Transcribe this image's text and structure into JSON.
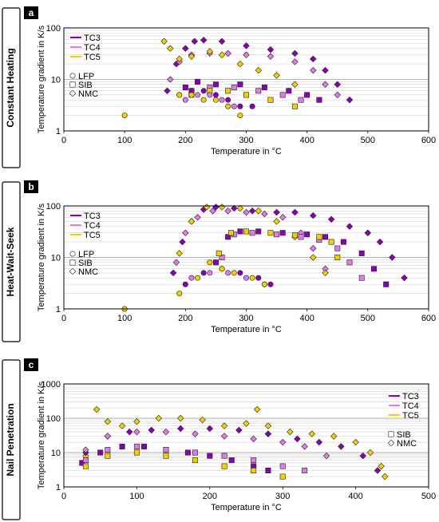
{
  "colors": {
    "TC3": "#8a00b8",
    "TC4": "#e07ae8",
    "TC5": "#f2d000",
    "axis": "#000000",
    "grid": "#c8c8c8"
  },
  "chart_data": [
    {
      "type": "scatter",
      "panel_letter": "a",
      "side_label": "Constant Heating",
      "xlabel": "Temperature in °C",
      "ylabel": "Temperature gradient in K/s",
      "y_scale": "log",
      "xlim": [
        0,
        600
      ],
      "ylim": [
        1,
        100
      ],
      "x_ticks": [
        "0",
        "100",
        "200",
        "300",
        "400",
        "500",
        "600"
      ],
      "y_ticks": [
        "1",
        "10",
        "100"
      ],
      "legend_lines": [
        "TC3",
        "TC4",
        "TC5"
      ],
      "legend_markers": [
        {
          "marker": "circle",
          "label": "LFP"
        },
        {
          "marker": "square",
          "label": "SIB"
        },
        {
          "marker": "diamond",
          "label": "NMC"
        }
      ],
      "series": [
        {
          "name": "TC3",
          "marker": "diamond",
          "points": [
            [
              170,
              6
            ],
            [
              185,
              20
            ],
            [
              200,
              40
            ],
            [
              215,
              55
            ],
            [
              230,
              58
            ],
            [
              260,
              55
            ],
            [
              300,
              45
            ],
            [
              340,
              38
            ],
            [
              380,
              32
            ],
            [
              410,
              25
            ],
            [
              430,
              15
            ],
            [
              450,
              8
            ],
            [
              470,
              4
            ]
          ]
        },
        {
          "name": "TC4",
          "marker": "diamond",
          "points": [
            [
              175,
              10
            ],
            [
              190,
              22
            ],
            [
              210,
              30
            ],
            [
              240,
              32
            ],
            [
              270,
              32
            ],
            [
              300,
              30
            ],
            [
              340,
              28
            ],
            [
              380,
              22
            ],
            [
              410,
              15
            ],
            [
              430,
              8
            ],
            [
              450,
              5
            ]
          ]
        },
        {
          "name": "TC5",
          "marker": "diamond",
          "points": [
            [
              165,
              55
            ],
            [
              175,
              40
            ],
            [
              190,
              25
            ],
            [
              210,
              28
            ],
            [
              240,
              35
            ],
            [
              260,
              30
            ],
            [
              290,
              20
            ],
            [
              320,
              15
            ],
            [
              350,
              12
            ],
            [
              380,
              8
            ]
          ]
        },
        {
          "name": "TC3",
          "marker": "square",
          "points": [
            [
              200,
              7
            ],
            [
              220,
              9
            ],
            [
              250,
              8
            ],
            [
              290,
              8
            ],
            [
              330,
              7
            ],
            [
              370,
              6
            ],
            [
              400,
              5
            ],
            [
              420,
              4
            ]
          ]
        },
        {
          "name": "TC4",
          "marker": "square",
          "points": [
            [
              210,
              6
            ],
            [
              240,
              7
            ],
            [
              280,
              7
            ],
            [
              320,
              6
            ],
            [
              360,
              5
            ],
            [
              390,
              4
            ]
          ]
        },
        {
          "name": "TC5",
          "marker": "square",
          "points": [
            [
              210,
              5
            ],
            [
              240,
              6
            ],
            [
              270,
              6
            ],
            [
              300,
              5
            ],
            [
              340,
              4
            ],
            [
              380,
              3
            ]
          ]
        },
        {
          "name": "TC3",
          "marker": "circle",
          "points": [
            [
              190,
              5
            ],
            [
              210,
              6
            ],
            [
              230,
              6
            ],
            [
              250,
              5
            ],
            [
              270,
              4
            ],
            [
              290,
              3
            ],
            [
              310,
              3
            ]
          ]
        },
        {
          "name": "TC4",
          "marker": "circle",
          "points": [
            [
              200,
              4
            ],
            [
              220,
              5
            ],
            [
              240,
              5
            ],
            [
              260,
              4
            ],
            [
              280,
              3
            ]
          ]
        },
        {
          "name": "TC5",
          "marker": "circle",
          "points": [
            [
              100,
              2
            ],
            [
              190,
              5
            ],
            [
              210,
              5
            ],
            [
              230,
              4
            ],
            [
              250,
              4
            ],
            [
              270,
              3
            ],
            [
              290,
              2
            ]
          ]
        }
      ]
    },
    {
      "type": "scatter",
      "panel_letter": "b",
      "side_label": "Heat-Wait-Seek",
      "xlabel": "Temperature in °C",
      "ylabel": "Temperature gradient in K/s",
      "y_scale": "log",
      "xlim": [
        0,
        600
      ],
      "ylim": [
        1,
        100
      ],
      "x_ticks": [
        "0",
        "100",
        "200",
        "300",
        "400",
        "500",
        "600"
      ],
      "y_ticks": [
        "1",
        "10",
        "100"
      ],
      "legend_lines": [
        "TC3",
        "TC4",
        "TC5"
      ],
      "legend_markers": [
        {
          "marker": "circle",
          "label": "LFP"
        },
        {
          "marker": "square",
          "label": "SIB"
        },
        {
          "marker": "diamond",
          "label": "NMC"
        }
      ],
      "series": [
        {
          "name": "TC3",
          "marker": "diamond",
          "points": [
            [
              180,
              5
            ],
            [
              195,
              20
            ],
            [
              210,
              50
            ],
            [
              230,
              85
            ],
            [
              250,
              95
            ],
            [
              280,
              90
            ],
            [
              310,
              80
            ],
            [
              350,
              75
            ],
            [
              380,
              75
            ],
            [
              410,
              65
            ],
            [
              440,
              55
            ],
            [
              470,
              40
            ],
            [
              500,
              30
            ],
            [
              520,
              20
            ],
            [
              540,
              10
            ],
            [
              560,
              4
            ]
          ]
        },
        {
          "name": "TC4",
          "marker": "diamond",
          "points": [
            [
              185,
              8
            ],
            [
              200,
              30
            ],
            [
              220,
              60
            ],
            [
              245,
              80
            ],
            [
              270,
              80
            ],
            [
              300,
              75
            ],
            [
              330,
              70
            ],
            [
              360,
              60
            ],
            [
              390,
              30
            ],
            [
              410,
              15
            ],
            [
              430,
              6
            ]
          ]
        },
        {
          "name": "TC5",
          "marker": "diamond",
          "points": [
            [
              190,
              12
            ],
            [
              210,
              50
            ],
            [
              235,
              95
            ],
            [
              260,
              95
            ],
            [
              290,
              90
            ],
            [
              320,
              80
            ],
            [
              350,
              50
            ],
            [
              380,
              25
            ],
            [
              410,
              10
            ],
            [
              430,
              5
            ]
          ]
        },
        {
          "name": "TC3",
          "marker": "square",
          "points": [
            [
              250,
              8
            ],
            [
              270,
              25
            ],
            [
              290,
              32
            ],
            [
              320,
              32
            ],
            [
              360,
              30
            ],
            [
              400,
              28
            ],
            [
              430,
              25
            ],
            [
              460,
              20
            ],
            [
              490,
              12
            ],
            [
              510,
              6
            ],
            [
              530,
              3
            ]
          ]
        },
        {
          "name": "TC4",
          "marker": "square",
          "points": [
            [
              260,
              10
            ],
            [
              280,
              28
            ],
            [
              310,
              30
            ],
            [
              350,
              28
            ],
            [
              390,
              25
            ],
            [
              420,
              22
            ],
            [
              450,
              15
            ],
            [
              470,
              8
            ],
            [
              490,
              4
            ]
          ]
        },
        {
          "name": "TC5",
          "marker": "square",
          "points": [
            [
              255,
              12
            ],
            [
              275,
              30
            ],
            [
              300,
              32
            ],
            [
              340,
              30
            ],
            [
              380,
              27
            ],
            [
              420,
              25
            ],
            [
              440,
              20
            ],
            [
              450,
              10
            ]
          ]
        },
        {
          "name": "TC3",
          "marker": "circle",
          "points": [
            [
              200,
              3
            ],
            [
              230,
              5
            ],
            [
              260,
              6
            ],
            [
              290,
              5
            ],
            [
              320,
              4
            ],
            [
              340,
              3
            ]
          ]
        },
        {
          "name": "TC4",
          "marker": "circle",
          "points": [
            [
              210,
              4
            ],
            [
              240,
              5
            ],
            [
              270,
              5
            ],
            [
              300,
              4
            ],
            [
              330,
              3
            ]
          ]
        },
        {
          "name": "TC5",
          "marker": "circle",
          "points": [
            [
              100,
              1
            ],
            [
              190,
              2
            ],
            [
              220,
              4
            ],
            [
              240,
              8
            ],
            [
              260,
              6
            ],
            [
              280,
              5
            ],
            [
              310,
              4
            ],
            [
              330,
              3
            ]
          ]
        }
      ]
    },
    {
      "type": "scatter",
      "panel_letter": "c",
      "side_label": "Nail Penetration",
      "xlabel": "Temperature in °C",
      "ylabel": "Temperature gradient in K/s",
      "y_scale": "log",
      "xlim": [
        0,
        500
      ],
      "ylim": [
        1,
        1000
      ],
      "x_ticks": [
        "0",
        "100",
        "200",
        "300",
        "400",
        "500"
      ],
      "y_ticks": [
        "1",
        "10",
        "100",
        "1000"
      ],
      "legend_lines": [
        "TC3",
        "TC4",
        "TC5"
      ],
      "legend_markers": [
        {
          "marker": "square",
          "label": "SIB"
        },
        {
          "marker": "diamond",
          "label": "NMC"
        }
      ],
      "series": [
        {
          "name": "TC5",
          "marker": "diamond",
          "points": [
            [
              30,
              8
            ],
            [
              45,
              180
            ],
            [
              60,
              80
            ],
            [
              80,
              60
            ],
            [
              100,
              80
            ],
            [
              130,
              100
            ],
            [
              160,
              100
            ],
            [
              190,
              90
            ],
            [
              220,
              60
            ],
            [
              250,
              70
            ],
            [
              265,
              180
            ],
            [
              280,
              60
            ],
            [
              310,
              40
            ],
            [
              340,
              35
            ],
            [
              370,
              30
            ],
            [
              400,
              20
            ],
            [
              420,
              10
            ],
            [
              435,
              4
            ],
            [
              440,
              2
            ]
          ]
        },
        {
          "name": "TC3",
          "marker": "diamond",
          "points": [
            [
              30,
              10
            ],
            [
              60,
              30
            ],
            [
              90,
              40
            ],
            [
              120,
              45
            ],
            [
              160,
              50
            ],
            [
              200,
              50
            ],
            [
              240,
              45
            ],
            [
              280,
              35
            ],
            [
              320,
              25
            ],
            [
              350,
              20
            ],
            [
              380,
              15
            ],
            [
              410,
              8
            ],
            [
              430,
              3
            ]
          ]
        },
        {
          "name": "TC4",
          "marker": "diamond",
          "points": [
            [
              30,
              12
            ],
            [
              60,
              30
            ],
            [
              100,
              40
            ],
            [
              140,
              40
            ],
            [
              180,
              35
            ],
            [
              220,
              30
            ],
            [
              260,
              25
            ],
            [
              300,
              20
            ],
            [
              330,
              15
            ],
            [
              360,
              8
            ]
          ]
        },
        {
          "name": "TC3",
          "marker": "square",
          "points": [
            [
              25,
              5
            ],
            [
              50,
              10
            ],
            [
              80,
              15
            ],
            [
              110,
              15
            ],
            [
              140,
              12
            ],
            [
              170,
              10
            ],
            [
              200,
              8
            ],
            [
              230,
              6
            ],
            [
              260,
              4
            ],
            [
              280,
              3
            ]
          ]
        },
        {
          "name": "TC4",
          "marker": "square",
          "points": [
            [
              30,
              6
            ],
            [
              60,
              12
            ],
            [
              100,
              15
            ],
            [
              140,
              12
            ],
            [
              180,
              10
            ],
            [
              220,
              8
            ],
            [
              260,
              6
            ],
            [
              300,
              4
            ],
            [
              330,
              3
            ]
          ]
        },
        {
          "name": "TC5",
          "marker": "square",
          "points": [
            [
              30,
              4
            ],
            [
              60,
              8
            ],
            [
              100,
              10
            ],
            [
              140,
              8
            ],
            [
              180,
              6
            ],
            [
              220,
              4
            ],
            [
              260,
              3
            ],
            [
              300,
              2
            ]
          ]
        }
      ]
    }
  ]
}
